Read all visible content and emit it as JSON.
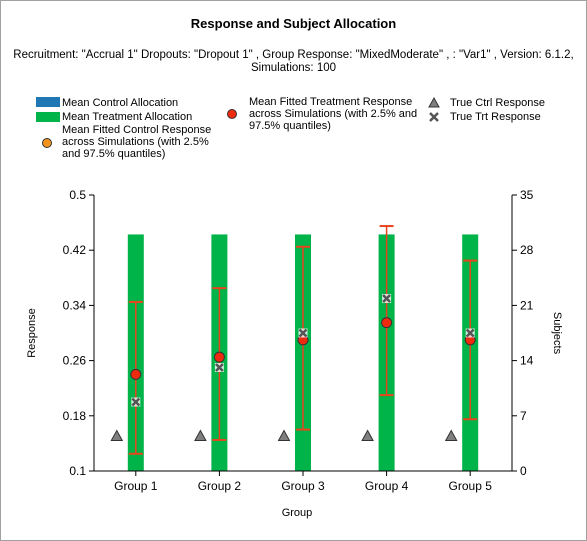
{
  "colors": {
    "control": "#1f77b4",
    "treatment": "#00b44a",
    "fitted_control": "#f0941e",
    "fitted_treatment": "#ee2b0f",
    "errorbar": "#e8441c",
    "true_marker": "#7f7f7f",
    "axis": "#000000"
  },
  "legend": {
    "mean_control_allocation": "Mean Control Allocation",
    "mean_treatment_allocation": "Mean Treatment Allocation",
    "fitted_control": "Mean Fitted Control Response across Simulations (with 2.5% and 97.5% quantiles)",
    "fitted_treatment": "Mean Fitted Treatment Response across Simulations (with 2.5% and 97.5% quantiles)",
    "true_ctrl": "True Ctrl Response",
    "true_trt": "True Trt Response"
  },
  "chart_data": {
    "type": "bar",
    "title": "Response and Subject Allocation",
    "subtitle": "Recruitment: \"Accrual 1\" Dropouts: \"Dropout 1\" , Group Response: \"MixedModerate\" , : \"Var1\" , Version: 6.1.2, Simulations: 100",
    "xlabel": "Group",
    "ylabel": "Response",
    "y2label": "Subjects",
    "categories": [
      "Group 1",
      "Group 2",
      "Group 3",
      "Group 4",
      "Group 5"
    ],
    "ylim": [
      0.1,
      0.5
    ],
    "yticks": [
      "0.1",
      "0.18",
      "0.26",
      "0.34",
      "0.42",
      "0.5"
    ],
    "y2lim": [
      0,
      35
    ],
    "y2ticks": [
      "0",
      "7",
      "14",
      "21",
      "28",
      "35"
    ],
    "mean_control_allocation": [
      0,
      0,
      0,
      0,
      0
    ],
    "mean_treatment_allocation": [
      30,
      30,
      30,
      30,
      30
    ],
    "fitted_treatment_mean": [
      0.24,
      0.265,
      0.29,
      0.315,
      0.29
    ],
    "fitted_treatment_lower": [
      0.125,
      0.145,
      0.16,
      0.21,
      0.175
    ],
    "fitted_treatment_upper": [
      0.345,
      0.365,
      0.425,
      0.455,
      0.405
    ],
    "true_ctrl_response": [
      0.15,
      0.15,
      0.15,
      0.15,
      0.15
    ],
    "true_trt_response": [
      0.2,
      0.25,
      0.3,
      0.35,
      0.3
    ],
    "legend_position": "top"
  }
}
